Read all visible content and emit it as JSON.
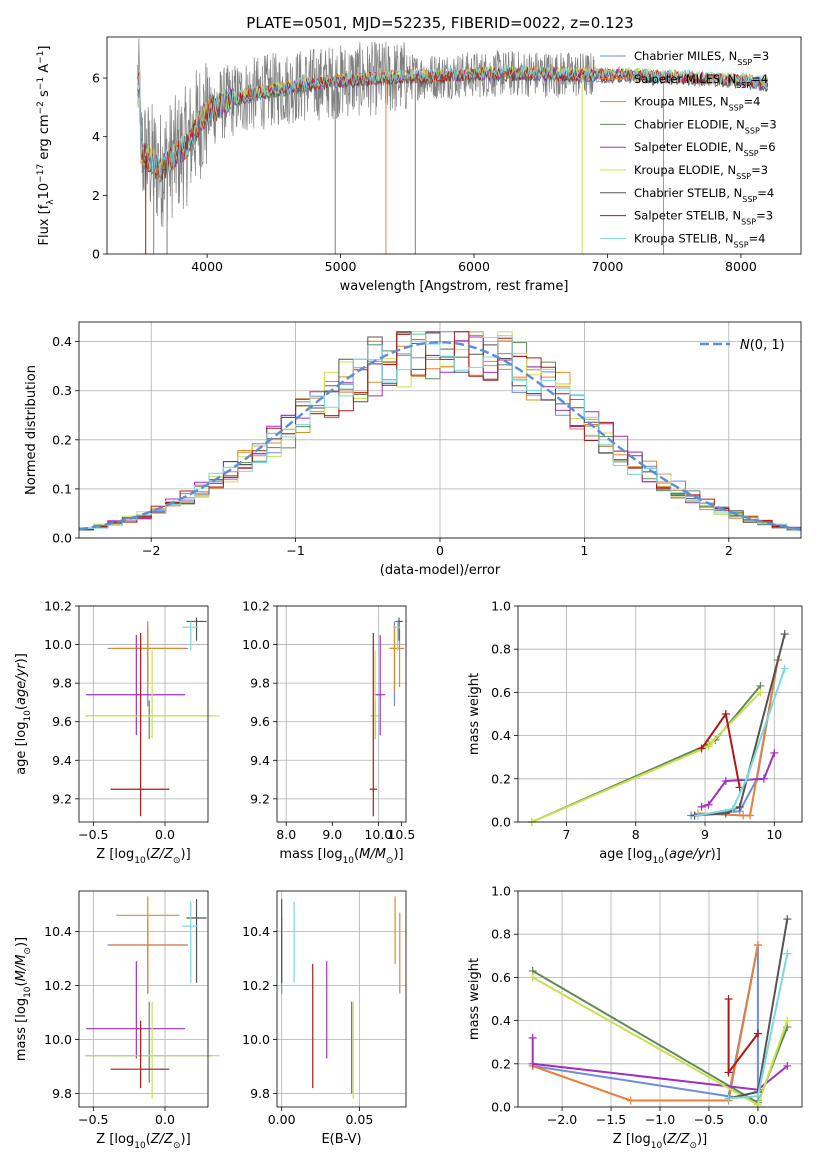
{
  "figure_title": "PLATE=0501, MJD=52235, FIBERID=0022, z=0.123",
  "colors": {
    "Chabrier MILES": "#6b8ce0",
    "Salpeter MILES": "#e8803a",
    "Kroupa MILES": "#d9902a",
    "Chabrier ELODIE": "#5f8a55",
    "Salpeter ELODIE": "#a030c0",
    "Kroupa ELODIE": "#c8e050",
    "Chabrier STELIB": "#555555",
    "Salpeter STELIB": "#b01818",
    "Kroupa STELIB": "#7ad8e0",
    "normal": "#5b8dd9",
    "data": "#808080"
  },
  "chart_data": [
    {
      "id": "spectrum",
      "type": "line",
      "xlabel": "wavelength [Angstrom, rest frame]",
      "ylabel": "Flux [f_λ 10^-17 erg cm^-2 s^-1 A^-1]",
      "xlim": [
        3250,
        8450
      ],
      "ylim": [
        0,
        7.4
      ],
      "xticks": [
        4000,
        5000,
        6000,
        7000,
        8000
      ],
      "yticks": [
        0,
        2,
        4,
        6
      ],
      "legend_position": "top-right",
      "series": [
        {
          "name": "Chabrier MILES, N_SSP=3",
          "key": "Chabrier MILES"
        },
        {
          "name": "Salpeter MILES, N_SSP=4",
          "key": "Salpeter MILES"
        },
        {
          "name": "Kroupa MILES, N_SSP=4",
          "key": "Kroupa MILES"
        },
        {
          "name": "Chabrier ELODIE, N_SSP=3",
          "key": "Chabrier ELODIE"
        },
        {
          "name": "Salpeter ELODIE, N_SSP=6",
          "key": "Salpeter ELODIE"
        },
        {
          "name": "Kroupa ELODIE, N_SSP=3",
          "key": "Kroupa ELODIE"
        },
        {
          "name": "Chabrier STELIB, N_SSP=4",
          "key": "Chabrier STELIB"
        },
        {
          "name": "Salpeter STELIB, N_SSP=3",
          "key": "Salpeter STELIB"
        },
        {
          "name": "Kroupa STELIB, N_SSP=4",
          "key": "Kroupa STELIB"
        }
      ],
      "continuum": {
        "x": [
          3500,
          3650,
          3700,
          3850,
          3950,
          4100,
          4300,
          4500,
          4800,
          5000,
          5300,
          5600,
          5900,
          6200,
          6500,
          6800,
          7100,
          7400,
          7700,
          8000,
          8200
        ],
        "y": [
          3.5,
          2.9,
          3.1,
          3.7,
          4.6,
          5.1,
          5.4,
          5.6,
          5.8,
          5.9,
          6.0,
          6.05,
          6.1,
          6.15,
          6.15,
          6.1,
          6.1,
          6.05,
          6.0,
          5.9,
          5.8
        ]
      }
    },
    {
      "id": "residuals",
      "type": "histogram",
      "xlabel": "(data-model)/error",
      "ylabel": "Normed distribution",
      "xlim": [
        -2.5,
        2.5
      ],
      "ylim": [
        0,
        0.44
      ],
      "xticks": [
        -2,
        -1,
        0,
        1,
        2
      ],
      "yticks": [
        0.0,
        0.1,
        0.2,
        0.3,
        0.4
      ],
      "bin_width": 0.1,
      "legend": "N(0,1)",
      "legend_position": "top-right",
      "reference": "N(0,1)"
    },
    {
      "id": "age_vs_Z",
      "type": "errorbar",
      "xlabel": "Z [log10(Z/Z⊙)]",
      "ylabel": "age  [log10(age/yr)]",
      "xlim": [
        -0.6,
        0.3
      ],
      "ylim": [
        9.08,
        10.2
      ],
      "xticks": [
        -0.5,
        0.0
      ],
      "yticks": [
        9.2,
        9.4,
        9.6,
        9.8,
        10.0,
        10.2
      ],
      "points": [
        {
          "key": "Chabrier MILES",
          "x": -0.12,
          "y": 9.98,
          "xerr": [
            0.28,
            0.28
          ],
          "yerr": [
            0.3,
            0.14
          ]
        },
        {
          "key": "Salpeter MILES",
          "x": -0.12,
          "y": 9.98,
          "xerr": [
            0.26,
            0.26
          ],
          "yerr": [
            0.2,
            0.1
          ]
        },
        {
          "key": "Kroupa MILES",
          "x": -0.12,
          "y": 9.98,
          "xerr": [
            0.22,
            0.22
          ],
          "yerr": [
            0.22,
            0.12
          ]
        },
        {
          "key": "Chabrier ELODIE",
          "x": -0.11,
          "y": 9.63,
          "xerr": [
            0.44,
            0.44
          ],
          "yerr": [
            0.12,
            0.08
          ]
        },
        {
          "key": "Salpeter ELODIE",
          "x": -0.2,
          "y": 9.74,
          "xerr": [
            0.35,
            0.34
          ],
          "yerr": [
            0.21,
            0.31
          ]
        },
        {
          "key": "Kroupa ELODIE",
          "x": -0.09,
          "y": 9.63,
          "xerr": [
            0.47,
            0.47
          ],
          "yerr": [
            0.12,
            0.34
          ]
        },
        {
          "key": "Chabrier STELIB",
          "x": 0.22,
          "y": 10.12,
          "xerr": [
            0.07,
            0.07
          ],
          "yerr": [
            0.1,
            0.02
          ]
        },
        {
          "key": "Salpeter STELIB",
          "x": -0.17,
          "y": 9.25,
          "xerr": [
            0.21,
            0.2
          ],
          "yerr": [
            0.14,
            0.81
          ]
        },
        {
          "key": "Kroupa STELIB",
          "x": 0.18,
          "y": 10.09,
          "xerr": [
            0.06,
            0.05
          ],
          "yerr": [
            0.12,
            0.03
          ]
        }
      ]
    },
    {
      "id": "age_vs_mass",
      "type": "errorbar",
      "xlabel": "mass [log10(M/M⊙)]",
      "ylabel": "",
      "xlim": [
        7.8,
        10.6
      ],
      "ylim": [
        9.08,
        10.2
      ],
      "xticks": [
        8,
        10
      ],
      "minor_xticks": [
        9,
        10.5
      ],
      "yticks": [
        9.2,
        9.4,
        9.6,
        9.8,
        10.0,
        10.2
      ],
      "points": [
        {
          "key": "Chabrier MILES",
          "x": 10.35,
          "y": 9.98,
          "xerr": [
            0.01,
            0.01
          ],
          "yerr": [
            0.3,
            0.14
          ]
        },
        {
          "key": "Salpeter MILES",
          "x": 10.46,
          "y": 9.98,
          "xerr": [
            0.22,
            0.1
          ],
          "yerr": [
            0.2,
            0.1
          ]
        },
        {
          "key": "Kroupa MILES",
          "x": 10.35,
          "y": 9.98,
          "xerr": [
            0.1,
            0.1
          ],
          "yerr": [
            0.22,
            0.12
          ]
        },
        {
          "key": "Chabrier ELODIE",
          "x": 9.93,
          "y": 9.63,
          "xerr": [
            0.09,
            0.1
          ],
          "yerr": [
            0.12,
            0.08
          ]
        },
        {
          "key": "Salpeter ELODIE",
          "x": 10.04,
          "y": 9.74,
          "xerr": [
            0.13,
            0.11
          ],
          "yerr": [
            0.21,
            0.31
          ]
        },
        {
          "key": "Kroupa ELODIE",
          "x": 9.93,
          "y": 9.63,
          "xerr": [
            0.1,
            0.1
          ],
          "yerr": [
            0.12,
            0.34
          ]
        },
        {
          "key": "Chabrier STELIB",
          "x": 10.45,
          "y": 10.12,
          "xerr": [
            0.08,
            0.08
          ],
          "yerr": [
            0.1,
            0.02
          ]
        },
        {
          "key": "Salpeter STELIB",
          "x": 9.89,
          "y": 9.25,
          "xerr": [
            0.08,
            0.08
          ],
          "yerr": [
            0.14,
            0.81
          ]
        },
        {
          "key": "Kroupa STELIB",
          "x": 10.42,
          "y": 10.09,
          "xerr": [
            0.1,
            0.06
          ],
          "yerr": [
            0.12,
            0.03
          ]
        }
      ]
    },
    {
      "id": "weight_vs_age",
      "type": "line",
      "xlabel": "age  [log10(age/yr)]",
      "ylabel": "mass weight",
      "xlim": [
        6.3,
        10.4
      ],
      "ylim": [
        0,
        1.0
      ],
      "xticks": [
        7,
        8,
        9,
        10
      ],
      "yticks": [
        0.0,
        0.2,
        0.4,
        0.6,
        0.8,
        1.0
      ],
      "series": [
        {
          "key": "Chabrier MILES",
          "x": [
            8.8,
            9.5,
            9.75,
            10.05
          ],
          "y": [
            0.03,
            0.05,
            0.2,
            0.75
          ]
        },
        {
          "key": "Salpeter MILES",
          "x": [
            8.9,
            9.55,
            9.65,
            10.05
          ],
          "y": [
            0.04,
            0.03,
            0.03,
            0.75
          ]
        },
        {
          "key": "Chabrier ELODIE",
          "x": [
            6.5,
            9.05,
            9.15,
            9.8
          ],
          "y": [
            0.0,
            0.36,
            0.38,
            0.63
          ]
        },
        {
          "key": "Salpeter ELODIE",
          "x": [
            8.95,
            9.05,
            9.3,
            9.85,
            10.0
          ],
          "y": [
            0.07,
            0.08,
            0.19,
            0.2,
            0.32
          ]
        },
        {
          "key": "Kroupa ELODIE",
          "x": [
            6.5,
            9.05,
            9.1,
            9.8
          ],
          "y": [
            0.0,
            0.35,
            0.37,
            0.6
          ]
        },
        {
          "key": "Chabrier STELIB",
          "x": [
            8.85,
            9.3,
            9.5,
            10.15
          ],
          "y": [
            0.03,
            0.04,
            0.07,
            0.87
          ]
        },
        {
          "key": "Salpeter STELIB",
          "x": [
            8.95,
            9.3,
            9.5
          ],
          "y": [
            0.34,
            0.5,
            0.16
          ]
        },
        {
          "key": "Kroupa STELIB",
          "x": [
            8.9,
            9.4,
            9.6,
            10.15
          ],
          "y": [
            0.03,
            0.06,
            0.2,
            0.71
          ]
        }
      ]
    },
    {
      "id": "mass_vs_Z",
      "type": "errorbar",
      "xlabel": "Z [log10(Z/Z⊙)]",
      "ylabel": "mass [log10(M/M⊙)]",
      "xlim": [
        -0.6,
        0.3
      ],
      "ylim": [
        9.75,
        10.55
      ],
      "xticks": [
        -0.5,
        0.0
      ],
      "yticks": [
        9.8,
        10.0,
        10.2,
        10.4
      ],
      "points": [
        {
          "key": "Chabrier MILES",
          "x": -0.12,
          "y": 10.35,
          "xerr": [
            0.28,
            0.28
          ],
          "yerr": [
            0.18,
            0.1
          ]
        },
        {
          "key": "Salpeter MILES",
          "x": -0.12,
          "y": 10.35,
          "xerr": [
            0.26,
            0.26
          ],
          "yerr": [
            0.18,
            0.1
          ]
        },
        {
          "key": "Kroupa MILES",
          "x": -0.12,
          "y": 10.46,
          "xerr": [
            0.22,
            0.22
          ],
          "yerr": [
            0.18,
            0.07
          ]
        },
        {
          "key": "Chabrier ELODIE",
          "x": -0.11,
          "y": 9.94,
          "xerr": [
            0.44,
            0.44
          ],
          "yerr": [
            0.1,
            0.2
          ]
        },
        {
          "key": "Salpeter ELODIE",
          "x": -0.2,
          "y": 10.04,
          "xerr": [
            0.35,
            0.34
          ],
          "yerr": [
            0.11,
            0.25
          ]
        },
        {
          "key": "Kroupa ELODIE",
          "x": -0.09,
          "y": 9.94,
          "xerr": [
            0.47,
            0.47
          ],
          "yerr": [
            0.16,
            0.2
          ]
        },
        {
          "key": "Chabrier STELIB",
          "x": 0.22,
          "y": 10.45,
          "xerr": [
            0.07,
            0.07
          ],
          "yerr": [
            0.24,
            0.07
          ]
        },
        {
          "key": "Salpeter STELIB",
          "x": -0.17,
          "y": 9.89,
          "xerr": [
            0.21,
            0.2
          ],
          "yerr": [
            0.07,
            0.18
          ]
        },
        {
          "key": "Kroupa STELIB",
          "x": 0.18,
          "y": 10.42,
          "xerr": [
            0.06,
            0.05
          ],
          "yerr": [
            0.21,
            0.09
          ]
        }
      ]
    },
    {
      "id": "mass_vs_ebv",
      "type": "errorbar",
      "xlabel": "E(B-V)",
      "ylabel": "",
      "xlim": [
        -0.003,
        0.08
      ],
      "ylim": [
        9.75,
        10.55
      ],
      "xticks": [
        0.0,
        0.05
      ],
      "yticks": [
        9.8,
        10.0,
        10.2,
        10.4
      ],
      "points": [
        {
          "key": "Chabrier MILES",
          "x": 0.0,
          "y": 10.35,
          "xerr": [
            0,
            0
          ],
          "yerr": [
            0.18,
            0.1
          ]
        },
        {
          "key": "Salpeter MILES",
          "x": 0.076,
          "y": 10.35,
          "xerr": [
            0,
            0
          ],
          "yerr": [
            0.18,
            0.12
          ]
        },
        {
          "key": "Kroupa MILES",
          "x": 0.073,
          "y": 10.46,
          "xerr": [
            0,
            0
          ],
          "yerr": [
            0.18,
            0.07
          ]
        },
        {
          "key": "Chabrier ELODIE",
          "x": 0.045,
          "y": 9.94,
          "xerr": [
            0,
            0
          ],
          "yerr": [
            0.14,
            0.2
          ]
        },
        {
          "key": "Salpeter ELODIE",
          "x": 0.029,
          "y": 10.1,
          "xerr": [
            0,
            0
          ],
          "yerr": [
            0.17,
            0.19
          ]
        },
        {
          "key": "Kroupa ELODIE",
          "x": 0.046,
          "y": 9.94,
          "xerr": [
            0,
            0
          ],
          "yerr": [
            0.16,
            0.2
          ]
        },
        {
          "key": "Chabrier STELIB",
          "x": 0.0,
          "y": 10.4,
          "xerr": [
            0,
            0
          ],
          "yerr": [
            0.19,
            0.12
          ]
        },
        {
          "key": "Salpeter STELIB",
          "x": 0.02,
          "y": 10.05,
          "xerr": [
            0,
            0
          ],
          "yerr": [
            0.23,
            0.23
          ]
        },
        {
          "key": "Kroupa STELIB",
          "x": 0.008,
          "y": 10.35,
          "xerr": [
            0,
            0
          ],
          "yerr": [
            0.14,
            0.16
          ]
        }
      ]
    },
    {
      "id": "weight_vs_Z",
      "type": "line",
      "xlabel": "Z [log10(Z/Z⊙)]",
      "ylabel": "mass weight",
      "xlim": [
        -2.45,
        0.45
      ],
      "ylim": [
        0,
        1.0
      ],
      "xticks": [
        -2.0,
        -1.5,
        -1.0,
        -0.5,
        0.0
      ],
      "yticks": [
        0.0,
        0.2,
        0.4,
        0.6,
        0.8,
        1.0
      ],
      "series": [
        {
          "key": "Chabrier MILES",
          "x": [
            -2.3,
            -0.3,
            0.0,
            0.0
          ],
          "y": [
            0.19,
            0.05,
            0.75,
            0.03
          ]
        },
        {
          "key": "Salpeter MILES",
          "x": [
            -2.3,
            -1.3,
            -0.3,
            0.0
          ],
          "y": [
            0.19,
            0.03,
            0.03,
            0.75
          ]
        },
        {
          "key": "Chabrier ELODIE",
          "x": [
            -2.3,
            0.0,
            0.3
          ],
          "y": [
            0.63,
            0.02,
            0.37
          ]
        },
        {
          "key": "Salpeter ELODIE",
          "x": [
            -2.3,
            -2.3,
            0.0,
            0.3
          ],
          "y": [
            0.32,
            0.2,
            0.08,
            0.19
          ]
        },
        {
          "key": "Kroupa ELODIE",
          "x": [
            -2.3,
            0.0,
            0.3
          ],
          "y": [
            0.6,
            0.01,
            0.4
          ]
        },
        {
          "key": "Chabrier STELIB",
          "x": [
            -0.3,
            0.0,
            0.3
          ],
          "y": [
            0.04,
            0.07,
            0.87
          ]
        },
        {
          "key": "Salpeter STELIB",
          "x": [
            -0.3,
            -0.3,
            0.0,
            0.0
          ],
          "y": [
            0.5,
            0.16,
            0.34,
            0.34
          ]
        },
        {
          "key": "Kroupa STELIB",
          "x": [
            -0.3,
            0.0,
            0.3
          ],
          "y": [
            0.04,
            0.05,
            0.71
          ]
        }
      ]
    }
  ]
}
